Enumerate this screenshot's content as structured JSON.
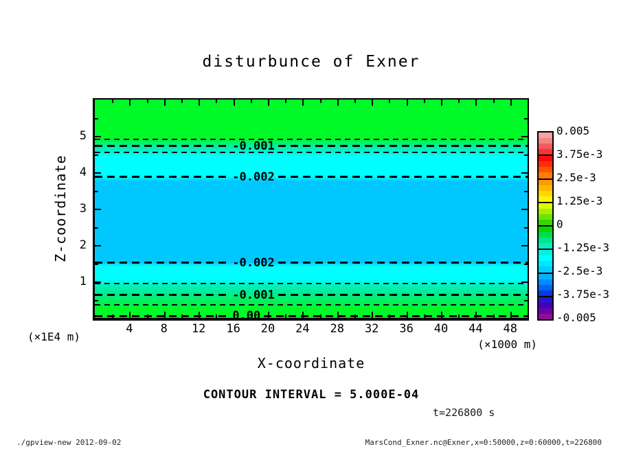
{
  "title": "disturbunce of Exner",
  "axes": {
    "x": {
      "label": "X-coordinate",
      "unit": "(×1000 m)",
      "range": [
        0,
        50
      ],
      "major_ticks": [
        4,
        8,
        12,
        16,
        20,
        24,
        28,
        32,
        36,
        40,
        44,
        48
      ],
      "minor_ticks": [
        2,
        6,
        10,
        14,
        18,
        22,
        26,
        30,
        34,
        38,
        42,
        46
      ],
      "tick_labels": [
        "4",
        "8",
        "12",
        "16",
        "20",
        "24",
        "28",
        "32",
        "36",
        "40",
        "44",
        "48"
      ]
    },
    "y": {
      "label": "Z-coordinate",
      "unit": "(×1E4 m)",
      "range": [
        0,
        6
      ],
      "major_ticks": [
        1,
        2,
        3,
        4,
        5
      ],
      "minor_ticks": [
        0.5,
        1.5,
        2.5,
        3.5,
        4.5,
        5.5
      ],
      "tick_labels": [
        "1",
        "2",
        "3",
        "4",
        "5"
      ]
    }
  },
  "colorbar": {
    "labels": [
      "0.005",
      "3.75e-3",
      "2.5e-3",
      "1.25e-3",
      "0",
      "-1.25e-3",
      "-2.5e-3",
      "-3.75e-3",
      "-0.005"
    ],
    "cells": [
      [
        "#f5a3a3",
        "#f58585",
        "#f55c5c",
        "#fa3434"
      ],
      [
        "#fb0b0b",
        "#ff2d00",
        "#ff5500",
        "#ff7d00"
      ],
      [
        "#ff9b00",
        "#ffb900",
        "#ffd700",
        "#fff500"
      ],
      [
        "#defc00",
        "#a5f000",
        "#6ce400",
        "#32d800"
      ],
      [
        "#00d800",
        "#00dc46",
        "#00e68c",
        "#00f0c8"
      ],
      [
        "#00f5e1",
        "#00ffff",
        "#00e6ff",
        "#00cdff"
      ],
      [
        "#00b4ff",
        "#008cff",
        "#0064f5",
        "#003ce1"
      ],
      [
        "#2814cd",
        "#4600b9",
        "#6e00a5",
        "#8c0f91"
      ]
    ]
  },
  "annotations": {
    "contour_interval": "CONTOUR INTERVAL = 5.000E-04",
    "time": "t=226800 s"
  },
  "footer": {
    "left": "./gpview-new  2012-09-02",
    "right": "MarsCond_Exner.nc@Exner,x=0:50000,z=0:60000,t=226800"
  },
  "render": {
    "plot_fill": [
      [
        0,
        "#00fa28"
      ],
      [
        18,
        "#00fa28"
      ],
      [
        20.5,
        "#00f287"
      ],
      [
        23,
        "#00f0c3"
      ],
      [
        26,
        "#00ffff"
      ],
      [
        35,
        "#00ffff"
      ],
      [
        37.5,
        "#00c8ff"
      ],
      [
        74.5,
        "#00c8ff"
      ],
      [
        76.5,
        "#00ffff"
      ],
      [
        82,
        "#00ffff"
      ],
      [
        85,
        "#00f2c3"
      ],
      [
        89.5,
        "#00ec83"
      ],
      [
        93.5,
        "#00f14b"
      ],
      [
        96,
        "#00fa28"
      ],
      [
        100,
        "#00fa28"
      ]
    ],
    "contours": [
      {
        "frac": 18.3,
        "weight": "thin",
        "label": ""
      },
      {
        "frac": 21.3,
        "weight": "thick",
        "label": "-0.001"
      },
      {
        "frac": 24.2,
        "weight": "thin",
        "label": ""
      },
      {
        "frac": 35.5,
        "weight": "thick",
        "label": "-0.002"
      },
      {
        "frac": 74.8,
        "weight": "thick",
        "label": "-0.002"
      },
      {
        "frac": 84.2,
        "weight": "thin",
        "label": ""
      },
      {
        "frac": 89.5,
        "weight": "thick",
        "label": "-0.001"
      },
      {
        "frac": 94.0,
        "weight": "thin",
        "label": ""
      },
      {
        "frac": 99.2,
        "weight": "thick",
        "label": "0.00"
      }
    ]
  },
  "chart_data": {
    "type": "heatmap",
    "subtype": "filled_contour",
    "title": "disturbunce of Exner",
    "xlabel": "X-coordinate",
    "xunit": "(×1000 m)",
    "ylabel": "Z-coordinate",
    "yunit": "(×1E4 m)",
    "xlim": [
      0,
      50
    ],
    "ylim": [
      0,
      6
    ],
    "x_domain": "x=0:50000",
    "z_domain": "z=0:60000",
    "time_seconds": 226800,
    "contour_interval": 0.0005,
    "colorbar_levels": [
      0.005,
      0.00375,
      0.0025,
      0.00125,
      0,
      -0.00125,
      -0.0025,
      -0.00375,
      -0.005
    ],
    "contour_lines": [
      {
        "level": -0.0005,
        "z_e4m": 4.9
      },
      {
        "level": -0.001,
        "z_e4m": 4.72
      },
      {
        "level": -0.0015,
        "z_e4m": 4.55
      },
      {
        "level": -0.002,
        "z_e4m": 3.87
      },
      {
        "level": -0.002,
        "z_e4m": 1.51
      },
      {
        "level": -0.0015,
        "z_e4m": 0.95
      },
      {
        "level": -0.001,
        "z_e4m": 0.63
      },
      {
        "level": -0.0005,
        "z_e4m": 0.36
      },
      {
        "level": 0.0,
        "z_e4m": 0.05
      }
    ],
    "profile_z_vs_value": [
      [
        0.0,
        0.0
      ],
      [
        0.36,
        -0.0005
      ],
      [
        0.63,
        -0.001
      ],
      [
        0.95,
        -0.0015
      ],
      [
        1.51,
        -0.002
      ],
      [
        2.7,
        -0.0023
      ],
      [
        3.87,
        -0.002
      ],
      [
        4.55,
        -0.0015
      ],
      [
        4.72,
        -0.001
      ],
      [
        4.9,
        -0.0005
      ],
      [
        6.0,
        -0.0002
      ]
    ],
    "legend_position": "right",
    "grid": false
  }
}
